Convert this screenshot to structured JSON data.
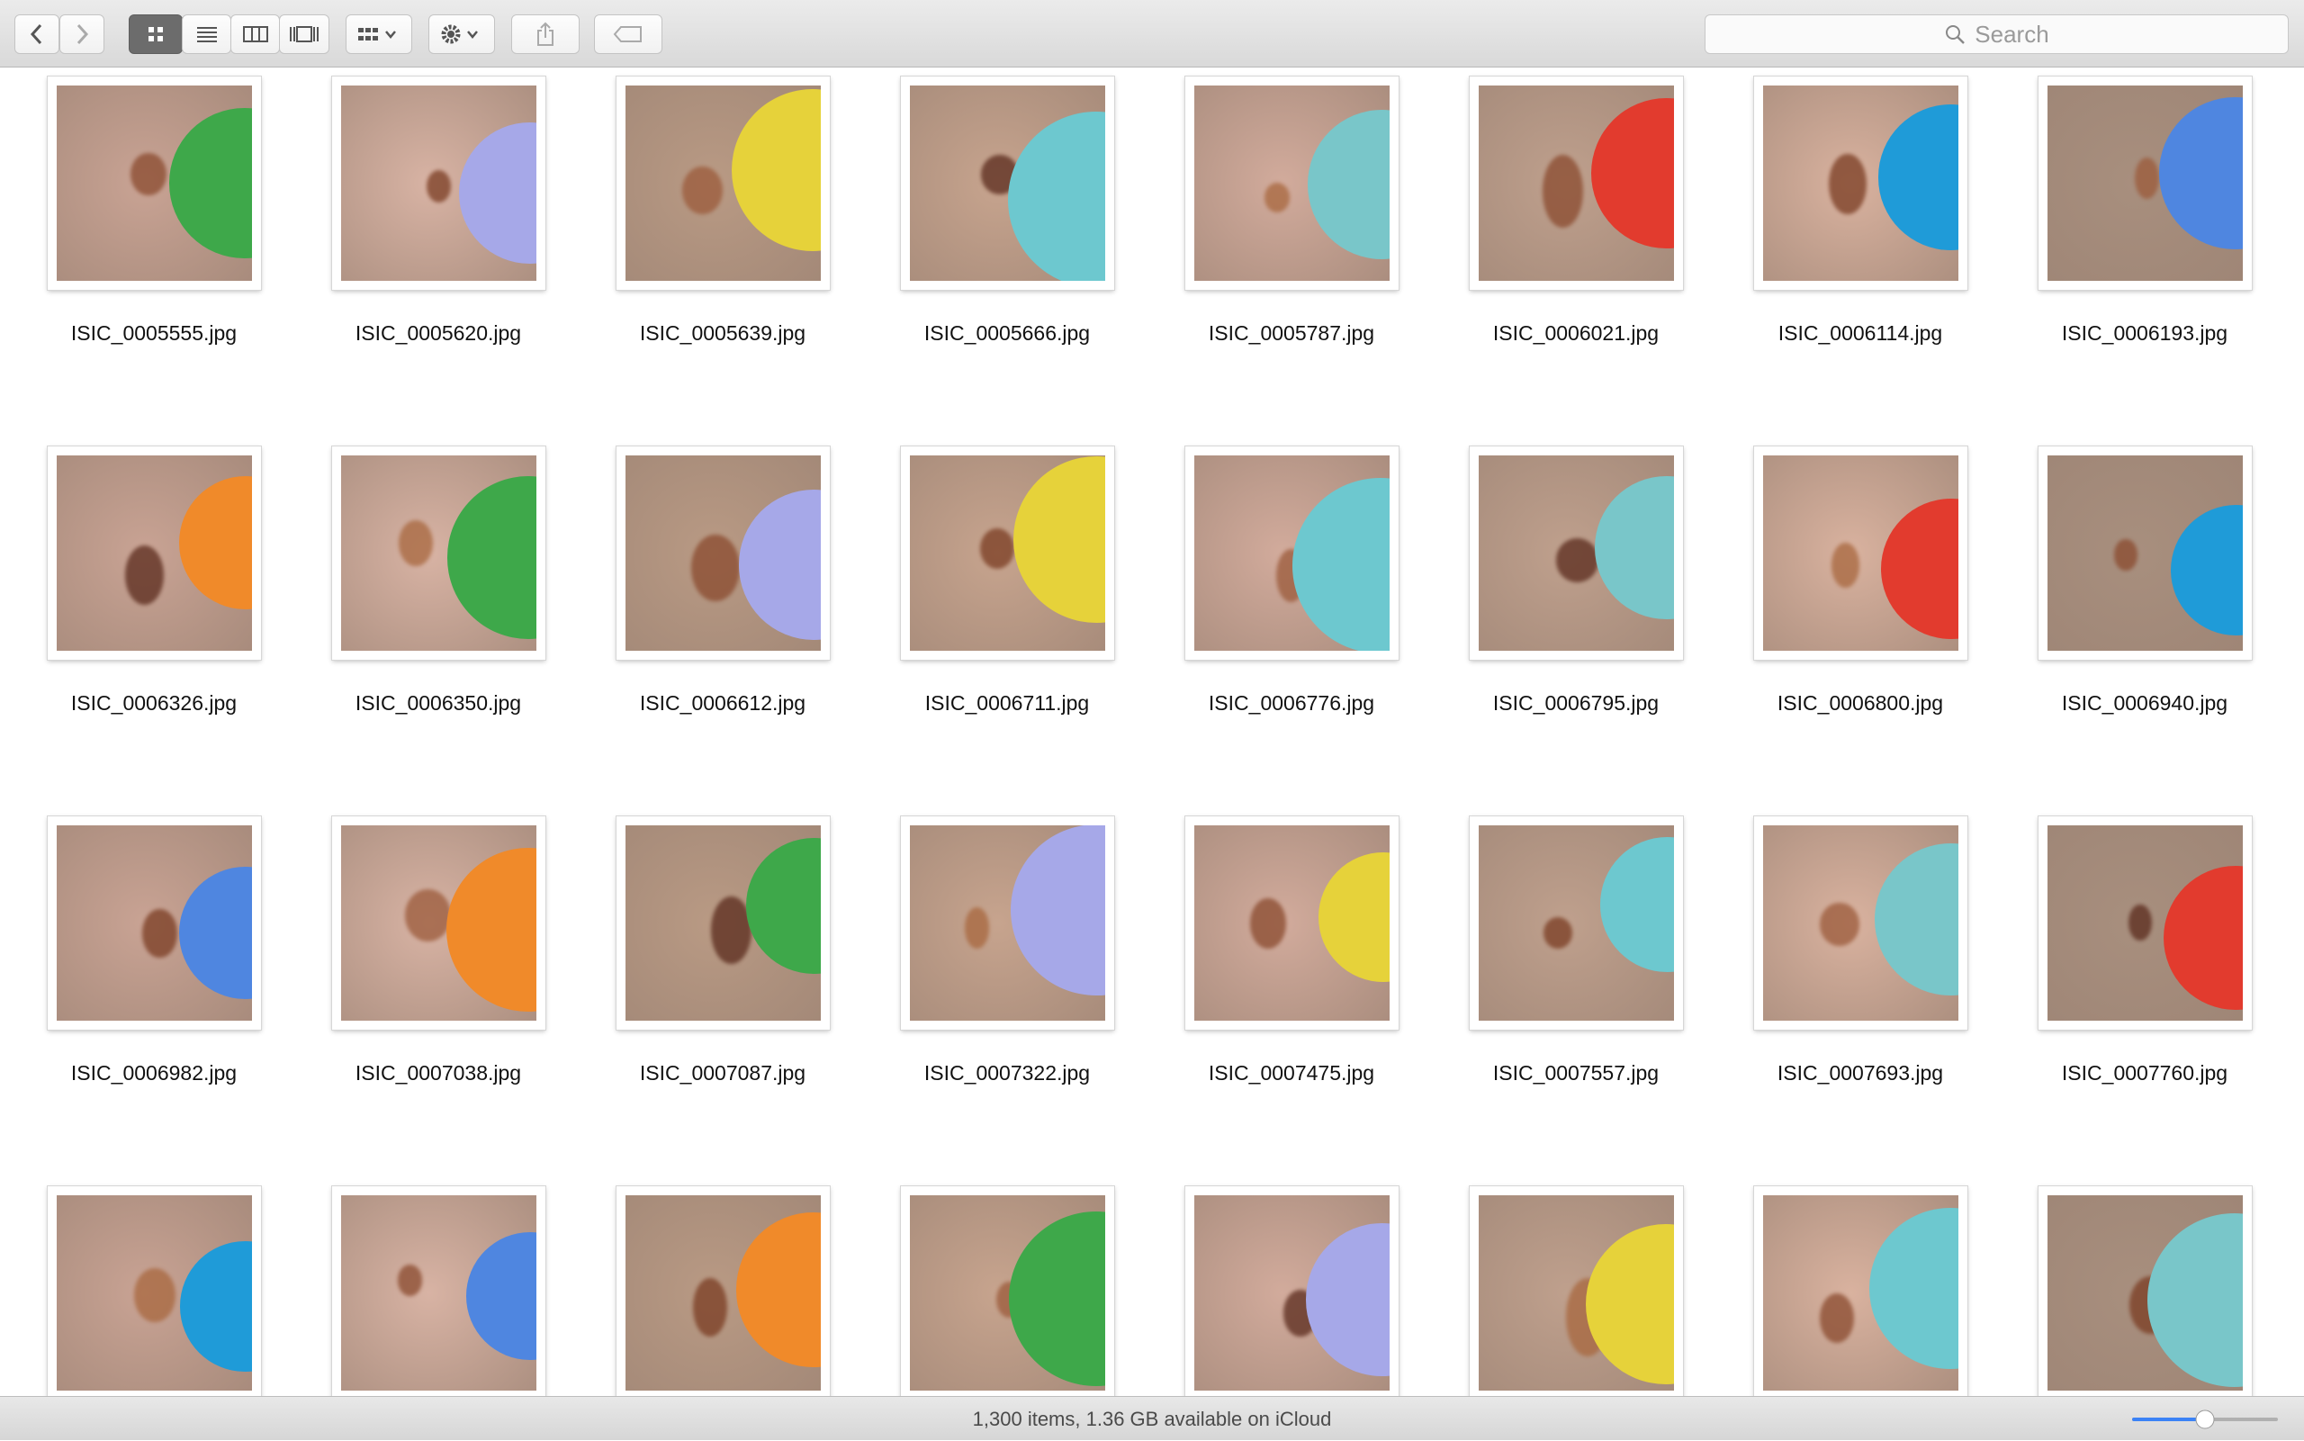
{
  "toolbar": {
    "search_placeholder": "Search"
  },
  "files": [
    "ISIC_0005555.jpg",
    "ISIC_0005620.jpg",
    "ISIC_0005639.jpg",
    "ISIC_0005666.jpg",
    "ISIC_0005787.jpg",
    "ISIC_0006021.jpg",
    "ISIC_0006114.jpg",
    "ISIC_0006193.jpg",
    "ISIC_0006326.jpg",
    "ISIC_0006350.jpg",
    "ISIC_0006612.jpg",
    "ISIC_0006711.jpg",
    "ISIC_0006776.jpg",
    "ISIC_0006795.jpg",
    "ISIC_0006800.jpg",
    "ISIC_0006940.jpg",
    "ISIC_0006982.jpg",
    "ISIC_0007038.jpg",
    "ISIC_0007087.jpg",
    "ISIC_0007322.jpg",
    "ISIC_0007475.jpg",
    "ISIC_0007557.jpg",
    "ISIC_0007693.jpg",
    "ISIC_0007760.jpg"
  ],
  "status": {
    "text": "1,300 items, 1.36 GB available on iCloud"
  }
}
